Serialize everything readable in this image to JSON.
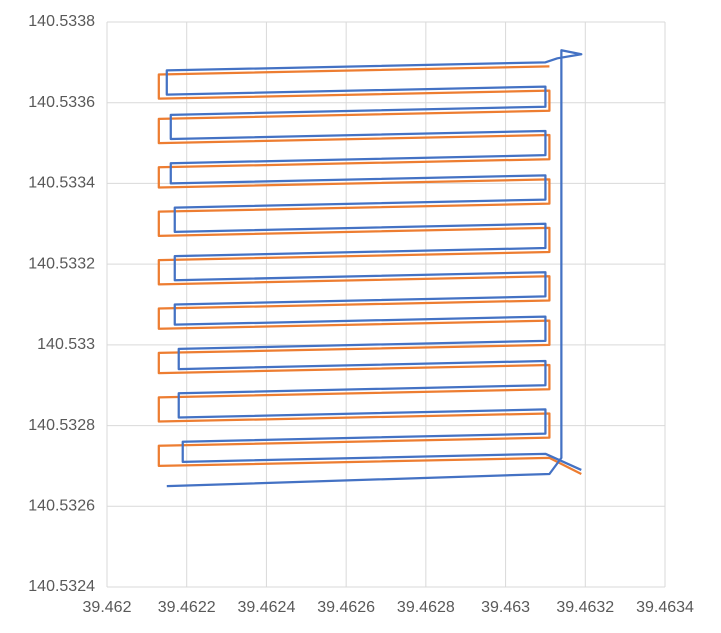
{
  "chart_data": {
    "type": "scatter-line",
    "xlim": [
      39.462,
      39.4634
    ],
    "xticks": [
      39.462,
      39.4622,
      39.4624,
      39.4626,
      39.4628,
      39.463,
      39.4632,
      39.4634
    ],
    "ylim": [
      140.5324,
      140.5338
    ],
    "yticks": [
      140.5324,
      140.5326,
      140.5328,
      140.533,
      140.5332,
      140.5334,
      140.5336,
      140.5338
    ],
    "grid": true,
    "series": [
      {
        "color": "#ed7d31",
        "x": [
          39.46311,
          39.46213,
          39.46213,
          39.46311,
          39.46311,
          39.46213,
          39.46213,
          39.46311,
          39.46311,
          39.46213,
          39.46213,
          39.46311,
          39.46311,
          39.46213,
          39.46213,
          39.46311,
          39.46311,
          39.46213,
          39.46213,
          39.46311,
          39.46311,
          39.46213,
          39.46213,
          39.46311,
          39.46311,
          39.46213,
          39.46213,
          39.46311,
          39.46311,
          39.46213,
          39.46213,
          39.46311,
          39.46311,
          39.46213,
          39.46213,
          39.46311,
          39.46319
        ],
        "values": [
          140.53369,
          140.53367,
          140.53361,
          140.53363,
          140.53358,
          140.53356,
          140.5335,
          140.53352,
          140.53346,
          140.53344,
          140.53339,
          140.53341,
          140.53335,
          140.53333,
          140.53327,
          140.53329,
          140.53323,
          140.53321,
          140.53315,
          140.53317,
          140.53311,
          140.53309,
          140.53304,
          140.53306,
          140.533,
          140.53298,
          140.53293,
          140.53295,
          140.53289,
          140.53287,
          140.53281,
          140.53283,
          140.53277,
          140.53275,
          140.5327,
          140.53272,
          140.53268
        ]
      },
      {
        "color": "#4472c4",
        "x": [
          39.46215,
          39.46311,
          39.46314,
          39.46314,
          39.46319,
          39.46313,
          39.4631,
          39.46215,
          39.46215,
          39.4631,
          39.4631,
          39.46216,
          39.46216,
          39.4631,
          39.4631,
          39.46216,
          39.46216,
          39.4631,
          39.4631,
          39.46217,
          39.46217,
          39.4631,
          39.4631,
          39.46217,
          39.46217,
          39.4631,
          39.4631,
          39.46217,
          39.46217,
          39.4631,
          39.4631,
          39.46218,
          39.46218,
          39.4631,
          39.4631,
          39.46218,
          39.46218,
          39.4631,
          39.4631,
          39.46219,
          39.46219,
          39.4631,
          39.46319
        ],
        "values": [
          140.53265,
          140.53268,
          140.53272,
          140.53373,
          140.53372,
          140.53371,
          140.5337,
          140.53368,
          140.53362,
          140.53364,
          140.53359,
          140.53357,
          140.53351,
          140.53353,
          140.53347,
          140.53345,
          140.5334,
          140.53342,
          140.53336,
          140.53334,
          140.53328,
          140.5333,
          140.53324,
          140.53322,
          140.53316,
          140.53318,
          140.53312,
          140.5331,
          140.53305,
          140.53307,
          140.53301,
          140.53299,
          140.53294,
          140.53296,
          140.5329,
          140.53288,
          140.53282,
          140.53284,
          140.53278,
          140.53276,
          140.53271,
          140.53273,
          140.53269
        ]
      }
    ]
  }
}
